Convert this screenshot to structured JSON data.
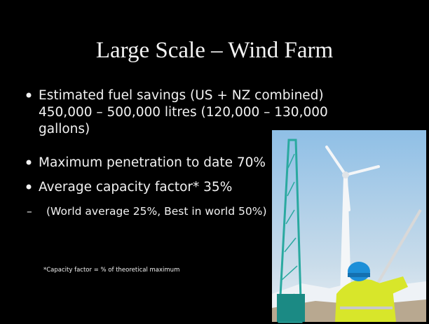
{
  "slide": {
    "title": "Large Scale – Wind Farm",
    "bullets": [
      {
        "lines": [
          "Estimated fuel savings (US + NZ combined)",
          "450,000 – 500,000 litres (120,000 – 130,000",
          "gallons)"
        ]
      },
      {
        "lines": [
          "Maximum penetration to date 70%"
        ]
      },
      {
        "lines": [
          "Average capacity factor* 35%"
        ]
      }
    ],
    "sub_bullet": "(World average 25%, Best in world 50%)",
    "footnote": "*Capacity factor = % of theoretical maximum"
  }
}
